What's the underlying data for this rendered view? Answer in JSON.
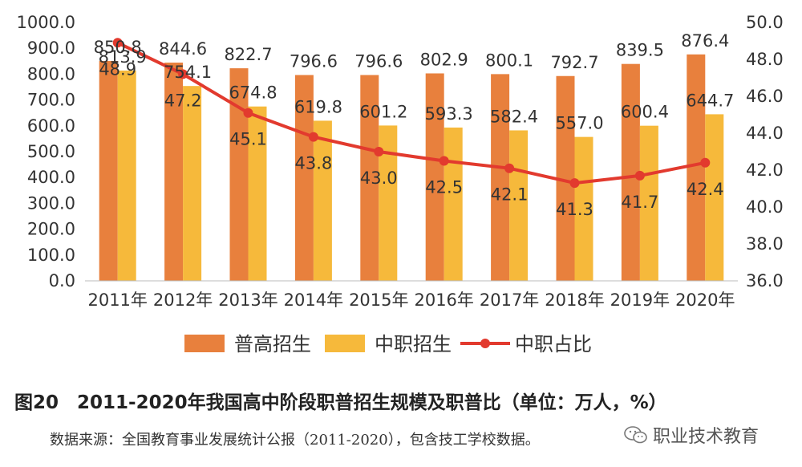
{
  "chart_data": {
    "type": "bar",
    "categories": [
      "2011年",
      "2012年",
      "2013年",
      "2014年",
      "2015年",
      "2016年",
      "2017年",
      "2018年",
      "2019年",
      "2020年"
    ],
    "series": [
      {
        "name": "普高招生",
        "type": "bar",
        "axis": "left",
        "color": "#E8803D",
        "values": [
          850.8,
          844.6,
          822.7,
          796.6,
          796.6,
          802.9,
          800.1,
          792.7,
          839.5,
          876.4
        ],
        "labels": [
          "850.8",
          "844.6",
          "822.7",
          "796.6",
          "796.6",
          "802.9",
          "800.1",
          "792.7",
          "839.5",
          "876.4"
        ]
      },
      {
        "name": "中职招生",
        "type": "bar",
        "axis": "left",
        "color": "#F6B93B",
        "values": [
          813.9,
          754.1,
          674.8,
          619.8,
          601.2,
          593.3,
          582.4,
          557.0,
          600.4,
          644.7
        ],
        "labels": [
          "813.9",
          "754.1",
          "674.8",
          "619.8",
          "601.2",
          "593.3",
          "582.4",
          "557.0",
          "600.4",
          "644.7"
        ]
      },
      {
        "name": "中职占比",
        "type": "line",
        "axis": "right",
        "color": "#E23A2E",
        "values": [
          48.9,
          47.2,
          45.1,
          43.8,
          43.0,
          42.5,
          42.1,
          41.3,
          41.7,
          42.4
        ],
        "labels": [
          "48.9",
          "47.2",
          "45.1",
          "43.8",
          "43.0",
          "42.5",
          "42.1",
          "41.3",
          "41.7",
          "42.4"
        ]
      }
    ],
    "y_left": {
      "min": 0,
      "max": 1000,
      "ticks": [
        "0.0",
        "100.0",
        "200.0",
        "300.0",
        "400.0",
        "500.0",
        "600.0",
        "700.0",
        "800.0",
        "900.0",
        "1000.0"
      ]
    },
    "y_right": {
      "min": 36,
      "max": 50,
      "ticks": [
        "36.0",
        "38.0",
        "40.0",
        "42.0",
        "44.0",
        "46.0",
        "48.0",
        "50.0"
      ]
    },
    "legend_position": "bottom",
    "grid": false
  },
  "caption": "图20　2011-2020年我国高中阶段职普招生规模及职普比（单位：万人，%）",
  "source": "数据来源：全国教育事业发展统计公报（2011-2020），包含技工学校数据。",
  "watermark": "职业技术教育"
}
